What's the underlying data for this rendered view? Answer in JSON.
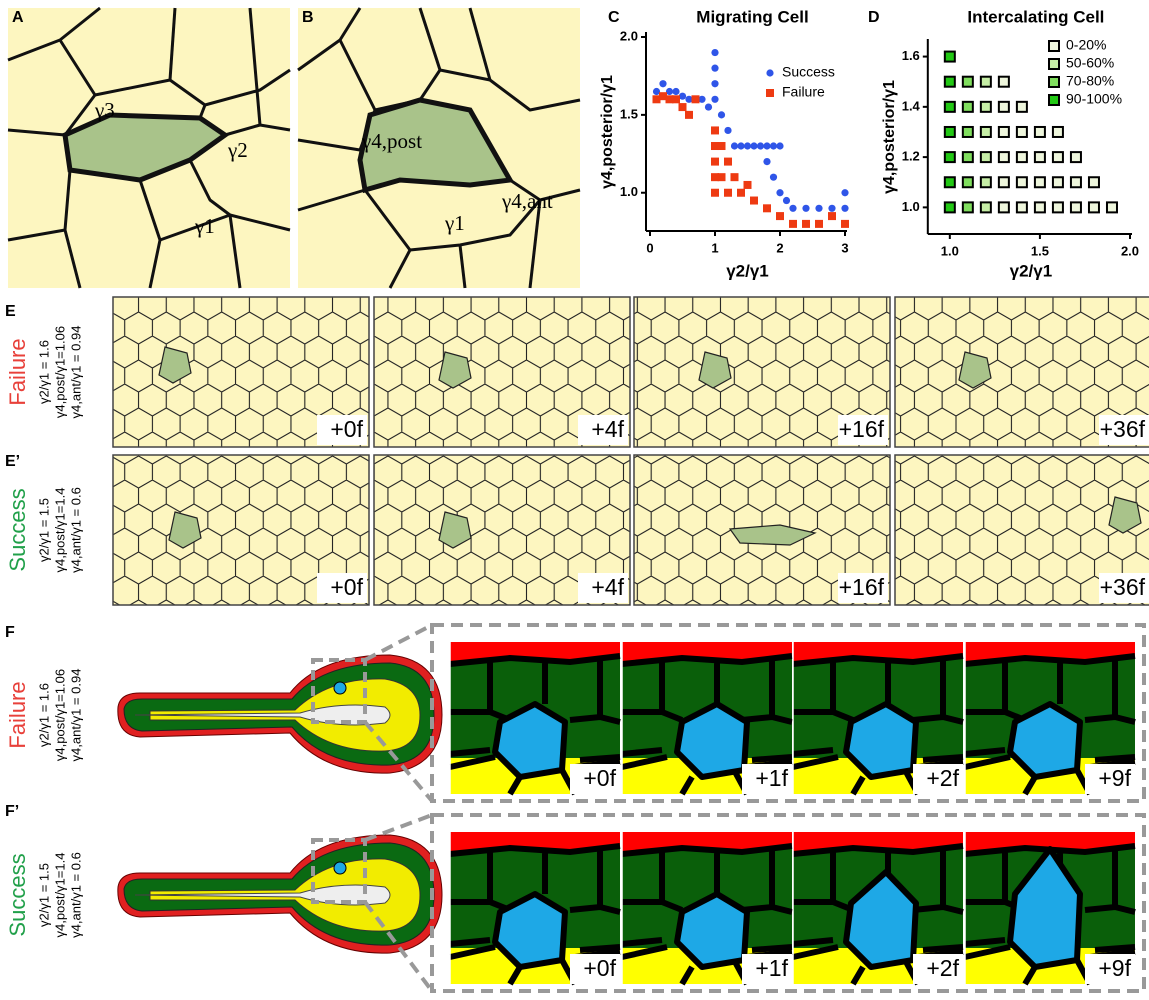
{
  "chart_data": [
    {
      "type": "scatter",
      "panel_label": "C",
      "title": "Migrating Cell",
      "x_label": "γ2/γ1",
      "y_label": "γ4,posterior/γ1",
      "xlim": [
        0,
        3
      ],
      "ylim": [
        0.78,
        2.0
      ],
      "xticks": [
        0,
        1,
        2,
        3
      ],
      "yticks": [
        {
          "value": 1,
          "label": "1.0"
        },
        1.5,
        {
          "value": 2,
          "label": "2.0"
        }
      ],
      "legend": "upper right",
      "series": [
        {
          "name": "Success",
          "color": "#2f55e8",
          "marker": "circle",
          "x": [
            0.1,
            0.2,
            0.3,
            0.4,
            0.5,
            0.6,
            0.8,
            0.9,
            1.0,
            1.0,
            1.0,
            1.0,
            1.1,
            1.2,
            1.3,
            1.4,
            1.5,
            1.6,
            1.7,
            1.8,
            1.9,
            2.0,
            1.8,
            1.9,
            2.0,
            2.1,
            2.2,
            2.4,
            2.6,
            2.8,
            3.0,
            3.0
          ],
          "values": [
            1.65,
            1.7,
            1.65,
            1.65,
            1.62,
            1.6,
            1.6,
            1.55,
            1.9,
            1.8,
            1.7,
            1.6,
            1.5,
            1.4,
            1.3,
            1.3,
            1.3,
            1.3,
            1.3,
            1.3,
            1.3,
            1.3,
            1.2,
            1.1,
            1.0,
            0.95,
            0.9,
            0.9,
            0.9,
            0.9,
            1.0,
            0.9
          ]
        },
        {
          "name": "Failure",
          "color": "#ee3a12",
          "marker": "square",
          "x": [
            0.1,
            0.2,
            0.3,
            0.4,
            0.5,
            0.6,
            0.7,
            1.0,
            1.0,
            1.0,
            1.0,
            1.0,
            1.1,
            1.1,
            1.2,
            1.2,
            1.3,
            1.4,
            1.5,
            1.6,
            1.8,
            2.0,
            2.2,
            2.4,
            2.6,
            2.8,
            3.0
          ],
          "values": [
            1.6,
            1.62,
            1.6,
            1.6,
            1.55,
            1.5,
            1.6,
            1.4,
            1.3,
            1.2,
            1.1,
            1.0,
            1.3,
            1.1,
            1.2,
            1.0,
            1.1,
            1.0,
            1.05,
            0.95,
            0.9,
            0.85,
            0.8,
            0.8,
            0.8,
            0.85,
            0.8
          ]
        }
      ]
    },
    {
      "type": "scatter",
      "panel_label": "D",
      "title": "Intercalating Cell",
      "x_label": "γ2/γ1",
      "y_label": "γ4,posterior/γ1",
      "xlim": [
        0.9,
        2.0
      ],
      "ylim": [
        0.91,
        1.65
      ],
      "xticks": [
        {
          "value": 1,
          "label": "1.0"
        },
        1.5,
        {
          "value": 2,
          "label": "2.0"
        }
      ],
      "yticks": [
        {
          "value": 1,
          "label": "1.0"
        },
        1.2,
        1.4,
        1.6
      ],
      "legend": "upper right",
      "series": [
        {
          "name": "0-20%",
          "color": "#eef6dc",
          "marker": "square",
          "x": [
            1.3,
            1.4,
            1.5,
            1.6,
            1.7,
            1.8,
            1.9,
            1.3,
            1.4,
            1.5,
            1.6,
            1.7,
            1.8,
            1.3,
            1.4,
            1.5,
            1.6,
            1.7,
            1.3,
            1.4,
            1.5,
            1.6,
            1.3,
            1.4,
            1.3
          ],
          "values": [
            1.0,
            1.0,
            1.0,
            1.0,
            1.0,
            1.0,
            1.0,
            1.1,
            1.1,
            1.1,
            1.1,
            1.1,
            1.1,
            1.2,
            1.2,
            1.2,
            1.2,
            1.2,
            1.3,
            1.3,
            1.3,
            1.3,
            1.4,
            1.4,
            1.5
          ]
        },
        {
          "name": "50-60%",
          "color": "#c6eea6",
          "marker": "square",
          "x": [
            1.2,
            1.2,
            1.2,
            1.2,
            1.2,
            1.2
          ],
          "values": [
            1.0,
            1.1,
            1.2,
            1.3,
            1.4,
            1.5
          ]
        },
        {
          "name": "70-80%",
          "color": "#80de5e",
          "marker": "square",
          "x": [
            1.1,
            1.1,
            1.1,
            1.1,
            1.1,
            1.1
          ],
          "values": [
            1.0,
            1.1,
            1.2,
            1.3,
            1.4,
            1.5
          ]
        },
        {
          "name": "90-100%",
          "color": "#22c814",
          "marker": "square",
          "x": [
            1.0,
            1.0,
            1.0,
            1.0,
            1.0,
            1.0,
            1.0
          ],
          "values": [
            1.0,
            1.1,
            1.2,
            1.3,
            1.4,
            1.5,
            1.6
          ]
        }
      ]
    }
  ],
  "panels": {
    "A": {
      "label": "A",
      "gammas": [
        "γ3",
        "γ2",
        "γ1"
      ]
    },
    "B": {
      "label": "B",
      "gammas": [
        "γ4,post",
        "γ4,ant",
        "γ1"
      ]
    },
    "E": {
      "label": "E",
      "outcome": "Failure",
      "params": [
        "γ2/γ1 = 1.6",
        "γ4,post/γ1=1.06",
        "γ4,ant/γ1 = 0.94"
      ],
      "frames": [
        "+0f",
        "+4f",
        "+16f",
        "+36f"
      ]
    },
    "E2": {
      "label": "E’",
      "outcome": "Success",
      "params": [
        "γ2/γ1 = 1.5",
        "γ4,post/γ1=1.4",
        "γ4,ant/γ1 = 0.6"
      ],
      "frames": [
        "+0f",
        "+4f",
        "+16f",
        "+36f"
      ]
    },
    "F": {
      "label": "F",
      "outcome": "Failure",
      "params": [
        "γ2/γ1 = 1.6",
        "γ4,post/γ1=1.06",
        "γ4,ant/γ1 = 0.94"
      ],
      "frames": [
        "+0f",
        "+1f",
        "+2f",
        "+9f"
      ]
    },
    "F2": {
      "label": "F’",
      "outcome": "Success",
      "params": [
        "γ2/γ1 = 1.5",
        "γ4,post/γ1=1.4",
        "γ4,ant/γ1 = 0.6"
      ],
      "frames": [
        "+0f",
        "+1f",
        "+2f",
        "+9f"
      ]
    }
  }
}
